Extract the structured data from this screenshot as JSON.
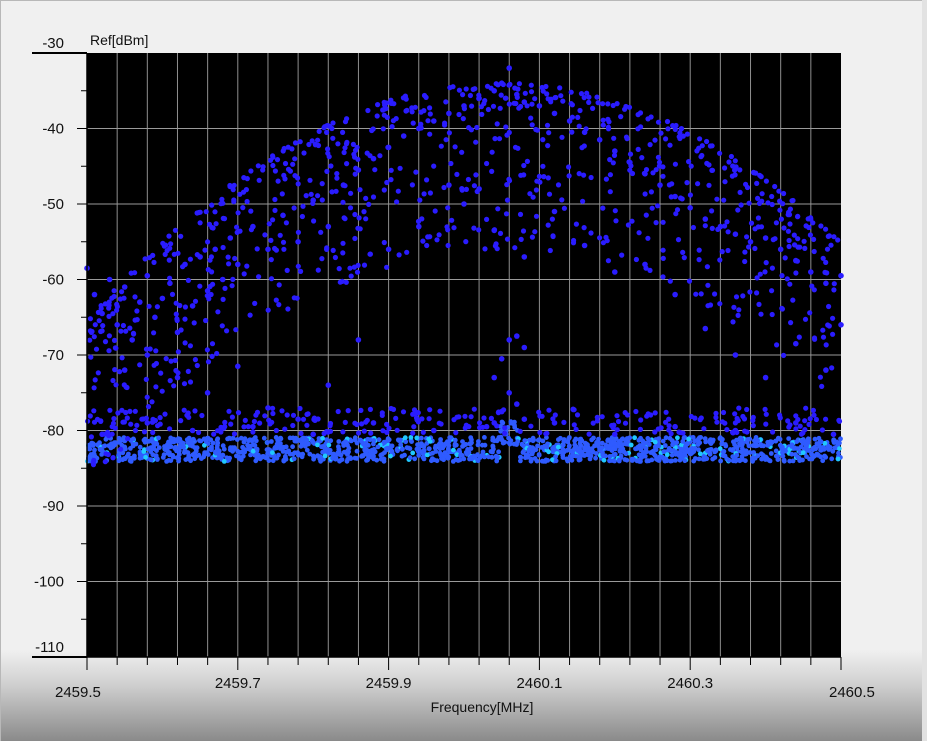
{
  "chart_data": {
    "type": "scatter",
    "y_unit_label": "Ref[dBm]",
    "xlabel": "Frequency[MHz]",
    "xlim": [
      2459.5,
      2460.5
    ],
    "ylim": [
      -110,
      -30
    ],
    "x_ticks": [
      "2459.5",
      "2459.7",
      "2459.9",
      "2460.1",
      "2460.3",
      "2460.5"
    ],
    "y_ticks": [
      "-30",
      "-40",
      "-50",
      "-60",
      "-70",
      "-80",
      "-90",
      "-100",
      "-110"
    ],
    "grid": true,
    "background": "#000000",
    "series": [
      {
        "color": "#2a1cff",
        "noise_floor_color": "#2f5bff",
        "highlight_color": "#20c8ff",
        "points": [
          [
            2459.5,
            -58.5
          ],
          [
            2459.51,
            -62.0
          ],
          [
            2459.52,
            -64.5
          ],
          [
            2459.53,
            -60.0
          ],
          [
            2459.54,
            -66.0
          ],
          [
            2459.55,
            -61.0
          ],
          [
            2459.56,
            -68.0
          ],
          [
            2459.57,
            -63.0
          ],
          [
            2459.58,
            -59.5
          ],
          [
            2459.59,
            -65.0
          ],
          [
            2459.6,
            -62.5
          ],
          [
            2459.61,
            -60.5
          ],
          [
            2459.62,
            -67.0
          ],
          [
            2459.63,
            -58.0
          ],
          [
            2459.64,
            -63.5
          ],
          [
            2459.65,
            -57.0
          ],
          [
            2459.66,
            -61.5
          ],
          [
            2459.67,
            -56.0
          ],
          [
            2459.68,
            -60.0
          ],
          [
            2459.69,
            -54.5
          ],
          [
            2459.7,
            -58.0
          ],
          [
            2459.72,
            -53.0
          ],
          [
            2459.74,
            -56.0
          ],
          [
            2459.76,
            -51.5
          ],
          [
            2459.78,
            -55.0
          ],
          [
            2459.8,
            -49.5
          ],
          [
            2459.82,
            -53.0
          ],
          [
            2459.84,
            -47.5
          ],
          [
            2459.86,
            -45.5
          ],
          [
            2459.88,
            -44.0
          ],
          [
            2459.9,
            -42.5
          ],
          [
            2459.92,
            -41.0
          ],
          [
            2459.94,
            -40.0
          ],
          [
            2459.96,
            -39.0
          ],
          [
            2459.98,
            -38.0
          ],
          [
            2460.0,
            -37.0
          ],
          [
            2460.02,
            -36.0
          ],
          [
            2460.04,
            -35.0
          ],
          [
            2460.05,
            -34.0
          ],
          [
            2460.06,
            -32.0
          ],
          [
            2460.07,
            -35.5
          ],
          [
            2460.08,
            -36.5
          ],
          [
            2460.1,
            -37.0
          ],
          [
            2460.12,
            -38.0
          ],
          [
            2460.14,
            -39.0
          ],
          [
            2460.16,
            -40.5
          ],
          [
            2460.18,
            -41.5
          ],
          [
            2460.2,
            -43.0
          ],
          [
            2460.22,
            -44.5
          ],
          [
            2460.24,
            -46.0
          ],
          [
            2460.26,
            -47.5
          ],
          [
            2460.28,
            -49.0
          ],
          [
            2460.3,
            -50.5
          ],
          [
            2460.32,
            -52.0
          ],
          [
            2460.34,
            -53.0
          ],
          [
            2460.36,
            -54.0
          ],
          [
            2460.38,
            -55.0
          ],
          [
            2460.4,
            -54.5
          ],
          [
            2460.42,
            -56.0
          ],
          [
            2460.44,
            -57.5
          ],
          [
            2460.46,
            -59.0
          ],
          [
            2460.48,
            -60.5
          ],
          [
            2460.5,
            -59.5
          ],
          [
            2459.55,
            -72.0
          ],
          [
            2459.58,
            -70.0
          ],
          [
            2459.62,
            -73.0
          ],
          [
            2459.66,
            -75.0
          ],
          [
            2459.7,
            -71.5
          ],
          [
            2459.74,
            -77.0
          ],
          [
            2459.78,
            -78.5
          ],
          [
            2459.82,
            -74.0
          ],
          [
            2459.86,
            -68.0
          ],
          [
            2459.9,
            -56.0
          ],
          [
            2459.94,
            -53.0
          ],
          [
            2459.98,
            -47.5
          ],
          [
            2460.0,
            -50.0
          ],
          [
            2460.02,
            -48.0
          ],
          [
            2460.04,
            -53.5
          ],
          [
            2460.08,
            -57.0
          ],
          [
            2460.12,
            -51.0
          ],
          [
            2460.16,
            -55.5
          ],
          [
            2460.2,
            -59.0
          ],
          [
            2460.24,
            -58.0
          ],
          [
            2460.28,
            -62.0
          ],
          [
            2460.32,
            -66.5
          ],
          [
            2460.36,
            -70.0
          ],
          [
            2460.4,
            -73.0
          ],
          [
            2460.44,
            -68.5
          ],
          [
            2460.48,
            -72.0
          ],
          [
            2460.5,
            -66.0
          ],
          [
            2460.04,
            -73.0
          ],
          [
            2460.05,
            -70.5
          ],
          [
            2460.06,
            -68.0
          ],
          [
            2460.07,
            -67.5
          ],
          [
            2460.08,
            -69.0
          ],
          [
            2460.06,
            -75.0
          ],
          [
            2460.05,
            -77.5
          ],
          [
            2460.07,
            -76.5
          ],
          [
            2460.04,
            -79.0
          ],
          [
            2460.08,
            -78.5
          ],
          [
            2459.52,
            -80.5
          ],
          [
            2459.58,
            -79.0
          ],
          [
            2459.64,
            -80.0
          ],
          [
            2459.72,
            -79.5
          ],
          [
            2459.8,
            -80.5
          ],
          [
            2459.88,
            -79.0
          ],
          [
            2459.96,
            -80.0
          ],
          [
            2460.03,
            -79.5
          ],
          [
            2460.12,
            -79.0
          ],
          [
            2460.2,
            -80.5
          ],
          [
            2460.28,
            -79.5
          ],
          [
            2460.36,
            -80.0
          ],
          [
            2460.44,
            -79.0
          ],
          [
            2460.49,
            -80.5
          ]
        ]
      }
    ]
  }
}
